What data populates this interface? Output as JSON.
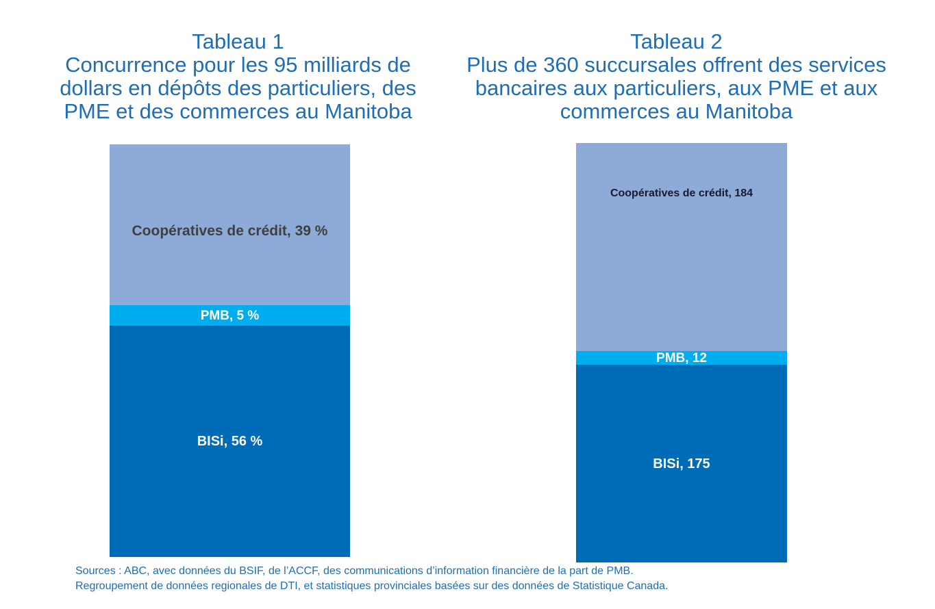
{
  "chart_data": [
    {
      "type": "bar",
      "stacked": true,
      "title": [
        "Tableau 1",
        "Concurrence pour les 95 milliards de",
        "dollars en dépôts des particuliers, des",
        "PME et des commerces au Manitoba"
      ],
      "unit": "%",
      "series": [
        {
          "name": "BISi",
          "values": [
            56
          ],
          "color": "#006bb6",
          "label": "BISi, 56 %",
          "label_color": "#ffffff"
        },
        {
          "name": "PMB",
          "values": [
            5
          ],
          "color": "#00aeef",
          "label": "PMB, 5 %",
          "label_color": "#ffffff"
        },
        {
          "name": "Coopératives de crédit",
          "values": [
            39
          ],
          "color": "#8eaad9",
          "label": "Coopératives de crédit, 39 %",
          "label_color": "#3f3f3f"
        }
      ]
    },
    {
      "type": "bar",
      "stacked": true,
      "title": [
        "Tableau 2",
        "Plus de 360 succursales offrent des services",
        "bancaires aux particuliers, aux PME et aux",
        "commerces au Manitoba"
      ],
      "series": [
        {
          "name": "BISi",
          "values": [
            175
          ],
          "color": "#006bb6",
          "label": "BISi, 175",
          "label_color": "#ffffff"
        },
        {
          "name": "PMB",
          "values": [
            12
          ],
          "color": "#00aeef",
          "label": "PMB, 12",
          "label_color": "#ffffff"
        },
        {
          "name": "Coopératives de crédit",
          "values": [
            184
          ],
          "color": "#8eaad9",
          "label": "Coopératives de crédit, 184",
          "label_color": "#1a1a2e"
        }
      ]
    }
  ],
  "sources": [
    "Sources : ABC, avec données du BSIF, de l’ACCF, des communications d’information financière de la part de PMB.",
    "Regroupement de données regionales de DTI, et statistiques provinciales basées sur des données de Statistique Canada."
  ]
}
